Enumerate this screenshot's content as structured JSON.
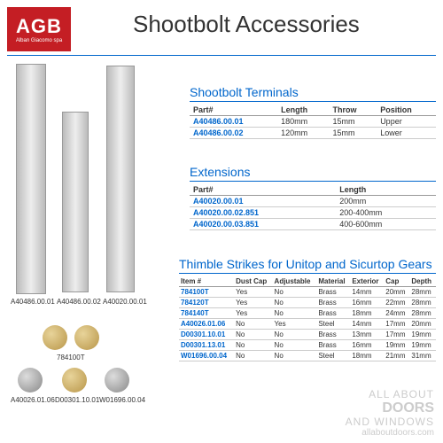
{
  "logo": {
    "main": "AGB",
    "sub": "Alban Giacomo spa"
  },
  "title": "Shootbolt Accessories",
  "bolt_labels": [
    "A40486.00.01",
    "A40486.00.02",
    "A40020.00.01"
  ],
  "thimble_labels": [
    "784100T",
    "A40026.01.06",
    "D00301.10.01",
    "W01696.00.04"
  ],
  "terminals": {
    "title": "Shootbolt Terminals",
    "cols": [
      "Part#",
      "Length",
      "Throw",
      "Position"
    ],
    "rows": [
      [
        "A40486.00.01",
        "180mm",
        "15mm",
        "Upper"
      ],
      [
        "A40486.00.02",
        "120mm",
        "15mm",
        "Lower"
      ]
    ]
  },
  "extensions": {
    "title": "Extensions",
    "cols": [
      "Part#",
      "Length"
    ],
    "rows": [
      [
        "A40020.00.01",
        "200mm"
      ],
      [
        "A40020.00.02.851",
        "200-400mm"
      ],
      [
        "A40020.00.03.851",
        "400-600mm"
      ]
    ]
  },
  "thimbles": {
    "title": "Thimble Strikes for Unitop and Sicurtop Gears",
    "cols": [
      "Item #",
      "Dust Cap",
      "Adjustable",
      "Material",
      "Exterior",
      "Cap",
      "Depth"
    ],
    "rows": [
      [
        "784100T",
        "Yes",
        "No",
        "Brass",
        "14mm",
        "20mm",
        "28mm"
      ],
      [
        "784120T",
        "Yes",
        "No",
        "Brass",
        "16mm",
        "22mm",
        "28mm"
      ],
      [
        "784140T",
        "Yes",
        "No",
        "Brass",
        "18mm",
        "24mm",
        "28mm"
      ],
      [
        "A40026.01.06",
        "No",
        "Yes",
        "Steel",
        "14mm",
        "17mm",
        "20mm"
      ],
      [
        "D00301.10.01",
        "No",
        "No",
        "Brass",
        "13mm",
        "17mm",
        "19mm"
      ],
      [
        "D00301.13.01",
        "No",
        "No",
        "Brass",
        "16mm",
        "19mm",
        "19mm"
      ],
      [
        "W01696.00.04",
        "No",
        "No",
        "Steel",
        "18mm",
        "21mm",
        "31mm"
      ]
    ]
  },
  "watermark": {
    "l1": "ALL ABOUT",
    "l2": "DOORS",
    "l3": "AND WINDOWS",
    "l4": "allaboutdoors.com"
  }
}
